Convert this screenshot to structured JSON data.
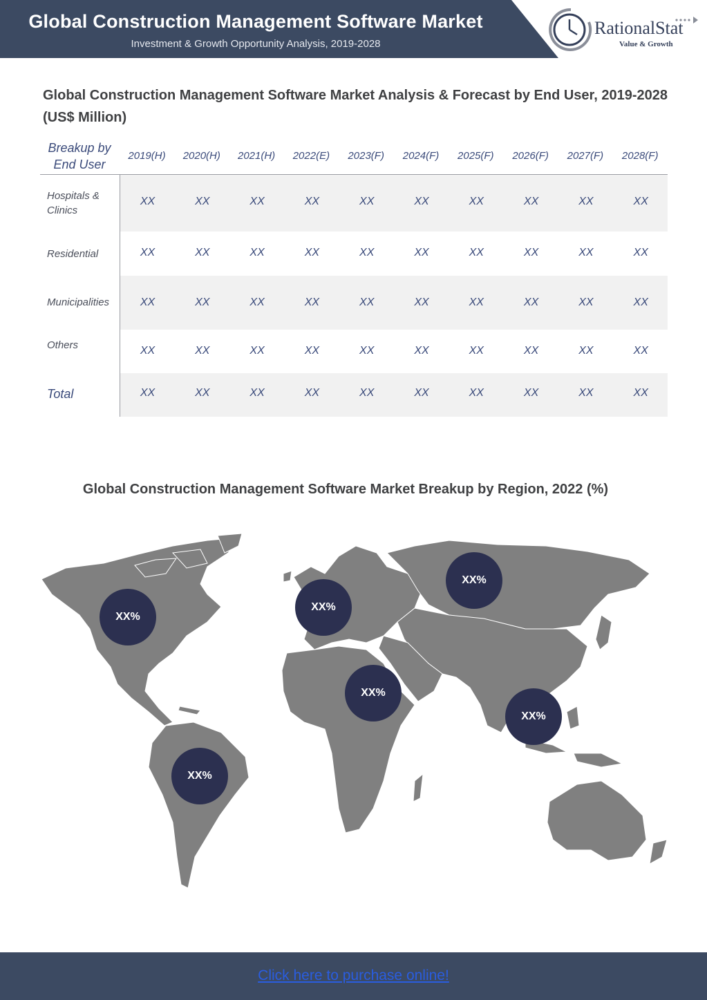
{
  "header": {
    "title": "Global Construction Management Software Market",
    "subtitle": "Investment & Growth Opportunity Analysis, 2019-2028"
  },
  "logo": {
    "name": "RationalStat",
    "tagline": "Value & Growth"
  },
  "table_section": {
    "title": "Global Construction Management Software Market Analysis & Forecast by End User, 2019-2028 (US$ Million)",
    "header_first": "Breakup by End User",
    "years": [
      "2019(H)",
      "2020(H)",
      "2021(H)",
      "2022(E)",
      "2023(F)",
      "2024(F)",
      "2025(F)",
      "2026(F)",
      "2027(F)",
      "2028(F)"
    ],
    "rows": [
      {
        "label": "Hospitals & Clinics",
        "values": [
          "XX",
          "XX",
          "XX",
          "XX",
          "XX",
          "XX",
          "XX",
          "XX",
          "XX",
          "XX"
        ]
      },
      {
        "label": "Residential",
        "values": [
          "XX",
          "XX",
          "XX",
          "XX",
          "XX",
          "XX",
          "XX",
          "XX",
          "XX",
          "XX"
        ]
      },
      {
        "label": "Municipalities",
        "values": [
          "XX",
          "XX",
          "XX",
          "XX",
          "XX",
          "XX",
          "XX",
          "XX",
          "XX",
          "XX"
        ]
      },
      {
        "label": "Others",
        "values": [
          "XX",
          "XX",
          "XX",
          "XX",
          "XX",
          "XX",
          "XX",
          "XX",
          "XX",
          "XX"
        ]
      },
      {
        "label": "Total",
        "values": [
          "XX",
          "XX",
          "XX",
          "XX",
          "XX",
          "XX",
          "XX",
          "XX",
          "XX",
          "XX"
        ]
      }
    ]
  },
  "map_section": {
    "title": "Global Construction Management Software Market Breakup by Region, 2022 (%)",
    "regions": [
      {
        "id": "north-america",
        "value": "XX%"
      },
      {
        "id": "europe",
        "value": "XX%"
      },
      {
        "id": "russia",
        "value": "XX%"
      },
      {
        "id": "middle-east-africa",
        "value": "XX%"
      },
      {
        "id": "asia-pacific",
        "value": "XX%"
      },
      {
        "id": "south-america",
        "value": "XX%"
      }
    ],
    "map_color": "#808080",
    "bubble_color": "#2c3050"
  },
  "footer": {
    "link_text": "Click here to purchase online!"
  },
  "colors": {
    "header_bg": "#3c4a62",
    "link": "#2a5de0"
  }
}
